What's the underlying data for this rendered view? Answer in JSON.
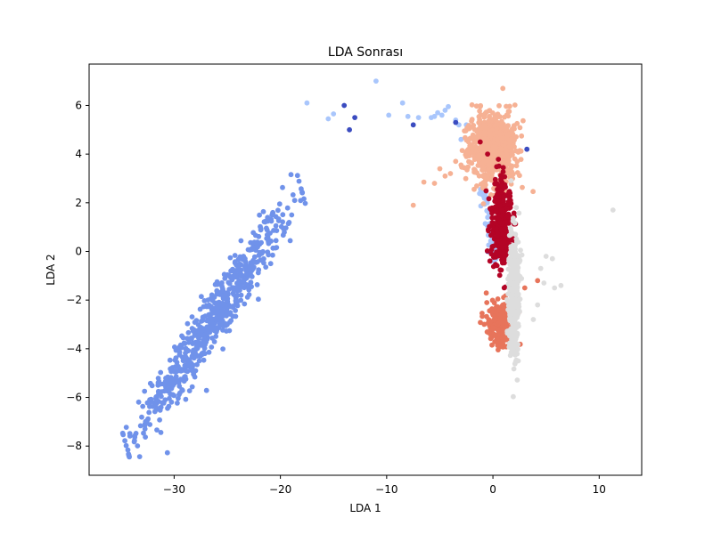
{
  "chart_data": {
    "type": "scatter",
    "title": "LDA Sonrası",
    "xlabel": "LDA 1",
    "ylabel": "LDA 2",
    "xlim": [
      -38,
      14
    ],
    "ylim": [
      -9.2,
      7.7
    ],
    "xticks": [
      -30,
      -20,
      -10,
      0,
      10
    ],
    "yticks": [
      -8,
      -6,
      -4,
      -2,
      0,
      2,
      4,
      6
    ],
    "xtick_labels": [
      "−30",
      "−20",
      "−10",
      "0",
      "10"
    ],
    "ytick_labels": [
      "−8",
      "−6",
      "−4",
      "−2",
      "0",
      "2",
      "4",
      "6"
    ],
    "grid": false,
    "legend": "none",
    "colors": {
      "medium_blue": "#7092ea",
      "light_blue": "#a9c6fc",
      "dark_blue": "#3b4cc0",
      "peach": "#f6b194",
      "dark_red": "#b40426",
      "coral": "#e7745b",
      "light_gray": "#dddddd"
    },
    "series": [
      {
        "color": "medium_blue",
        "count": 640,
        "cluster": {
          "start": [
            -34.5,
            -8.0
          ],
          "end": [
            -18.0,
            2.5
          ],
          "spread": 0.55
        }
      },
      {
        "color": "light_blue",
        "points": [
          [
            -17.5,
            6.1
          ],
          [
            -15.0,
            5.65
          ],
          [
            -15.5,
            5.45
          ],
          [
            -11.0,
            7.0
          ],
          [
            -8.5,
            6.1
          ],
          [
            -9.8,
            5.6
          ],
          [
            -8.0,
            5.55
          ],
          [
            -7.0,
            5.5
          ],
          [
            -5.8,
            5.5
          ],
          [
            -5.5,
            5.55
          ],
          [
            -5.2,
            5.7
          ],
          [
            -4.5,
            5.8
          ],
          [
            -4.2,
            5.95
          ],
          [
            -4.8,
            5.6
          ],
          [
            -3.5,
            5.4
          ],
          [
            -3.2,
            5.2
          ],
          [
            -2.5,
            5.2
          ],
          [
            -3.0,
            4.6
          ]
        ],
        "band": {
          "start": [
            -1.0,
            2.8
          ],
          "end": [
            0.2,
            -0.5
          ],
          "count": 70
        }
      },
      {
        "color": "dark_blue",
        "points": [
          [
            -14.0,
            6.0
          ],
          [
            -13.0,
            5.5
          ],
          [
            -13.5,
            5.0
          ],
          [
            -7.5,
            5.2
          ],
          [
            -3.5,
            5.3
          ],
          [
            3.2,
            4.2
          ],
          [
            -0.5,
            -0.0
          ]
        ]
      },
      {
        "color": "peach",
        "count": 700,
        "cluster": {
          "center": [
            0.0,
            4.3
          ],
          "spread_x": 1.1,
          "spread_y": 0.75
        },
        "outliers": [
          [
            -7.5,
            1.9
          ],
          [
            -6.5,
            2.85
          ],
          [
            -5.5,
            2.8
          ],
          [
            -4.0,
            3.2
          ],
          [
            -3.5,
            3.7
          ],
          [
            -3.0,
            3.55
          ],
          [
            -2.5,
            3.9
          ],
          [
            -5.0,
            3.4
          ],
          [
            -4.5,
            3.1
          ]
        ]
      },
      {
        "color": "dark_red",
        "count": 330,
        "cluster": {
          "center": [
            0.8,
            1.2
          ],
          "spread_x": 0.5,
          "spread_y": 0.9
        },
        "outliers": [
          [
            -1.2,
            4.5
          ],
          [
            -0.5,
            4.0
          ]
        ]
      },
      {
        "color": "coral",
        "count": 240,
        "cluster": {
          "center": [
            0.7,
            -3.0
          ],
          "spread_x": 0.65,
          "spread_y": 0.45
        },
        "outliers": [
          [
            4.2,
            -1.2
          ],
          [
            3.0,
            -1.5
          ]
        ]
      },
      {
        "color": "light_gray",
        "count": 420,
        "cluster": {
          "center": [
            2.0,
            -1.8
          ],
          "spread_x": 0.25,
          "spread_y": 1.3
        },
        "outliers": [
          [
            11.3,
            1.7
          ],
          [
            4.5,
            -0.7
          ],
          [
            5.0,
            -0.2
          ],
          [
            5.6,
            -0.3
          ],
          [
            4.8,
            -1.3
          ],
          [
            5.8,
            -1.5
          ],
          [
            6.4,
            -1.4
          ],
          [
            3.8,
            -2.8
          ],
          [
            4.2,
            -2.2
          ]
        ]
      }
    ]
  }
}
